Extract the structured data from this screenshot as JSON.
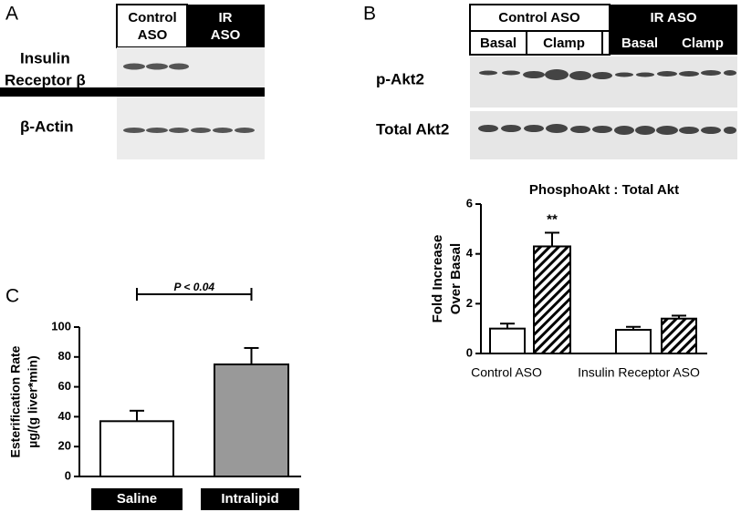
{
  "panels": {
    "a": "A",
    "b": "B",
    "c": "C"
  },
  "blot_a": {
    "header": [
      [
        "Control",
        "ASO"
      ],
      [
        "IR",
        "ASO"
      ]
    ],
    "rows": [
      [
        "Insulin",
        "Receptor β"
      ],
      "β-Actin"
    ]
  },
  "blot_b": {
    "groups": [
      "Control ASO",
      "IR ASO"
    ],
    "conditions": [
      "Basal",
      "Clamp",
      "Basal",
      "Clamp"
    ],
    "rows": [
      "p-Akt2",
      "Total Akt2"
    ]
  },
  "chart_data": [
    {
      "type": "bar",
      "title": "PhosphoAkt : Total Akt",
      "ylabel": [
        "Fold Increase",
        "Over Basal"
      ],
      "categories": [
        "Control ASO",
        "Insulin Receptor ASO"
      ],
      "series": [
        {
          "color": "#ffffff",
          "values": [
            1.0,
            0.95
          ],
          "errors": [
            0.2,
            0.12
          ]
        },
        {
          "color": "#000000",
          "hatch": true,
          "values": [
            4.3,
            1.4
          ],
          "errors": [
            0.55,
            0.12
          ]
        }
      ],
      "annotation": "**",
      "ylim": [
        0,
        6
      ],
      "yticks": [
        0,
        2,
        4,
        6
      ]
    },
    {
      "type": "bar",
      "ylabel": [
        "Esterification Rate",
        "µg/(g liver*min)"
      ],
      "categories": [
        "Saline",
        "Intralipid"
      ],
      "colors": [
        "#ffffff",
        "#999999"
      ],
      "values": [
        37,
        75
      ],
      "errors": [
        7,
        11
      ],
      "annotation": "P < 0.04",
      "ylim": [
        0,
        100
      ],
      "yticks": [
        0,
        20,
        40,
        60,
        80,
        100
      ]
    }
  ]
}
